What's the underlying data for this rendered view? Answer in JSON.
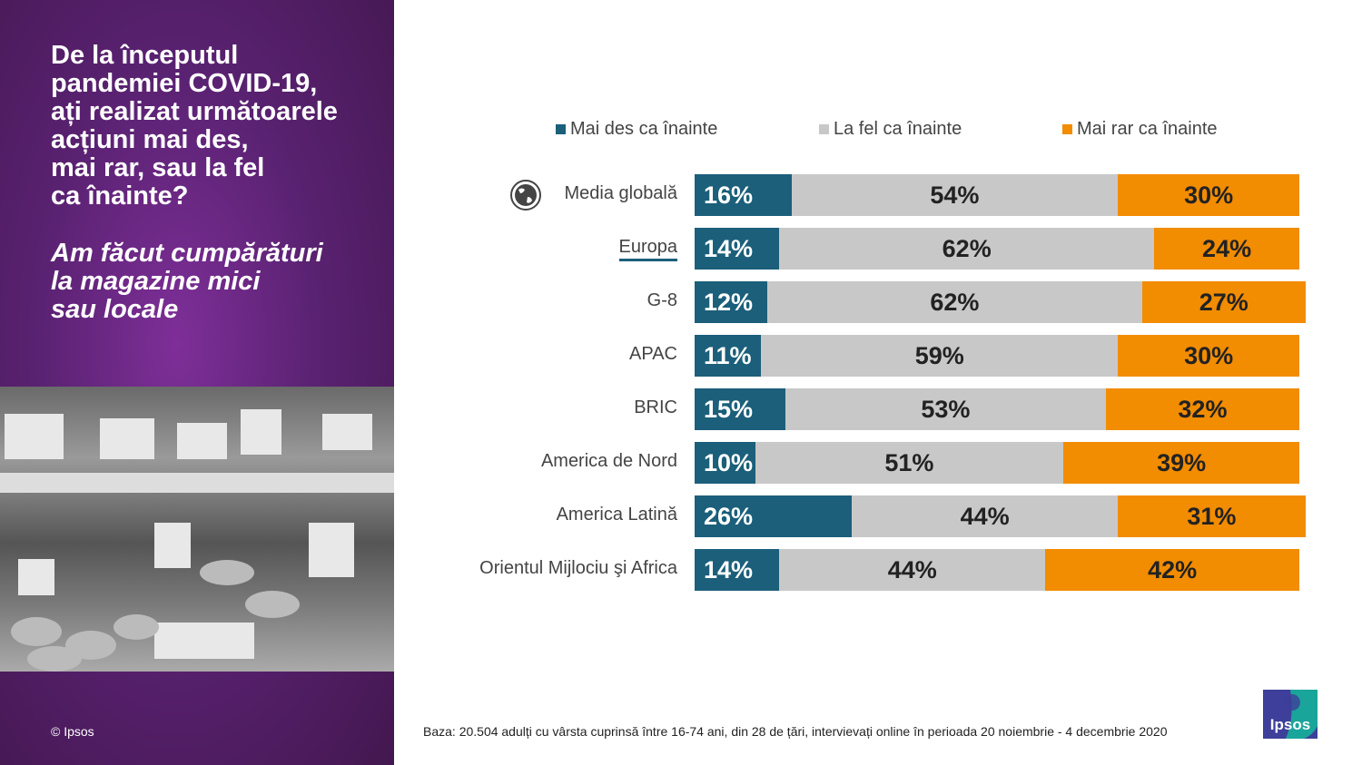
{
  "left_panel": {
    "question": "De la începutul\npandemiei COVID-19,\nați realizat următoarele\nacțiuni mai des,\nmai rar, sau la fel\nca înainte?",
    "subtitle": "Am făcut cumpărături\nla magazine mici\nsau locale",
    "copyright": "© Ipsos"
  },
  "footer": {
    "base": "Baza: 20.504 adulți cu vârsta cuprinsă între 16-74 ani, din 28 de țări, intervievați online în perioada 20 noiembrie - 4 decembrie 2020",
    "logo": "Ipsos"
  },
  "chart_data": {
    "type": "bar",
    "stacked": true,
    "orientation": "horizontal",
    "categories": [
      "Media globală",
      "Europa",
      "G-8",
      "APAC",
      "BRIC",
      "America de Nord",
      "America Latină",
      "Orientul Mijlociu şi Africa"
    ],
    "series": [
      {
        "name": "Mai des ca înainte",
        "color": "#1b5f7a",
        "values": [
          16,
          14,
          12,
          11,
          15,
          10,
          26,
          14
        ]
      },
      {
        "name": "La fel ca înainte",
        "color": "#c8c8c8",
        "values": [
          54,
          62,
          62,
          59,
          53,
          51,
          44,
          44
        ]
      },
      {
        "name": "Mai rar ca înainte",
        "color": "#f28c00",
        "values": [
          30,
          24,
          27,
          30,
          32,
          39,
          31,
          42
        ]
      }
    ],
    "xlim": [
      0,
      100
    ],
    "legend": "top",
    "icon": "globe-icon"
  }
}
